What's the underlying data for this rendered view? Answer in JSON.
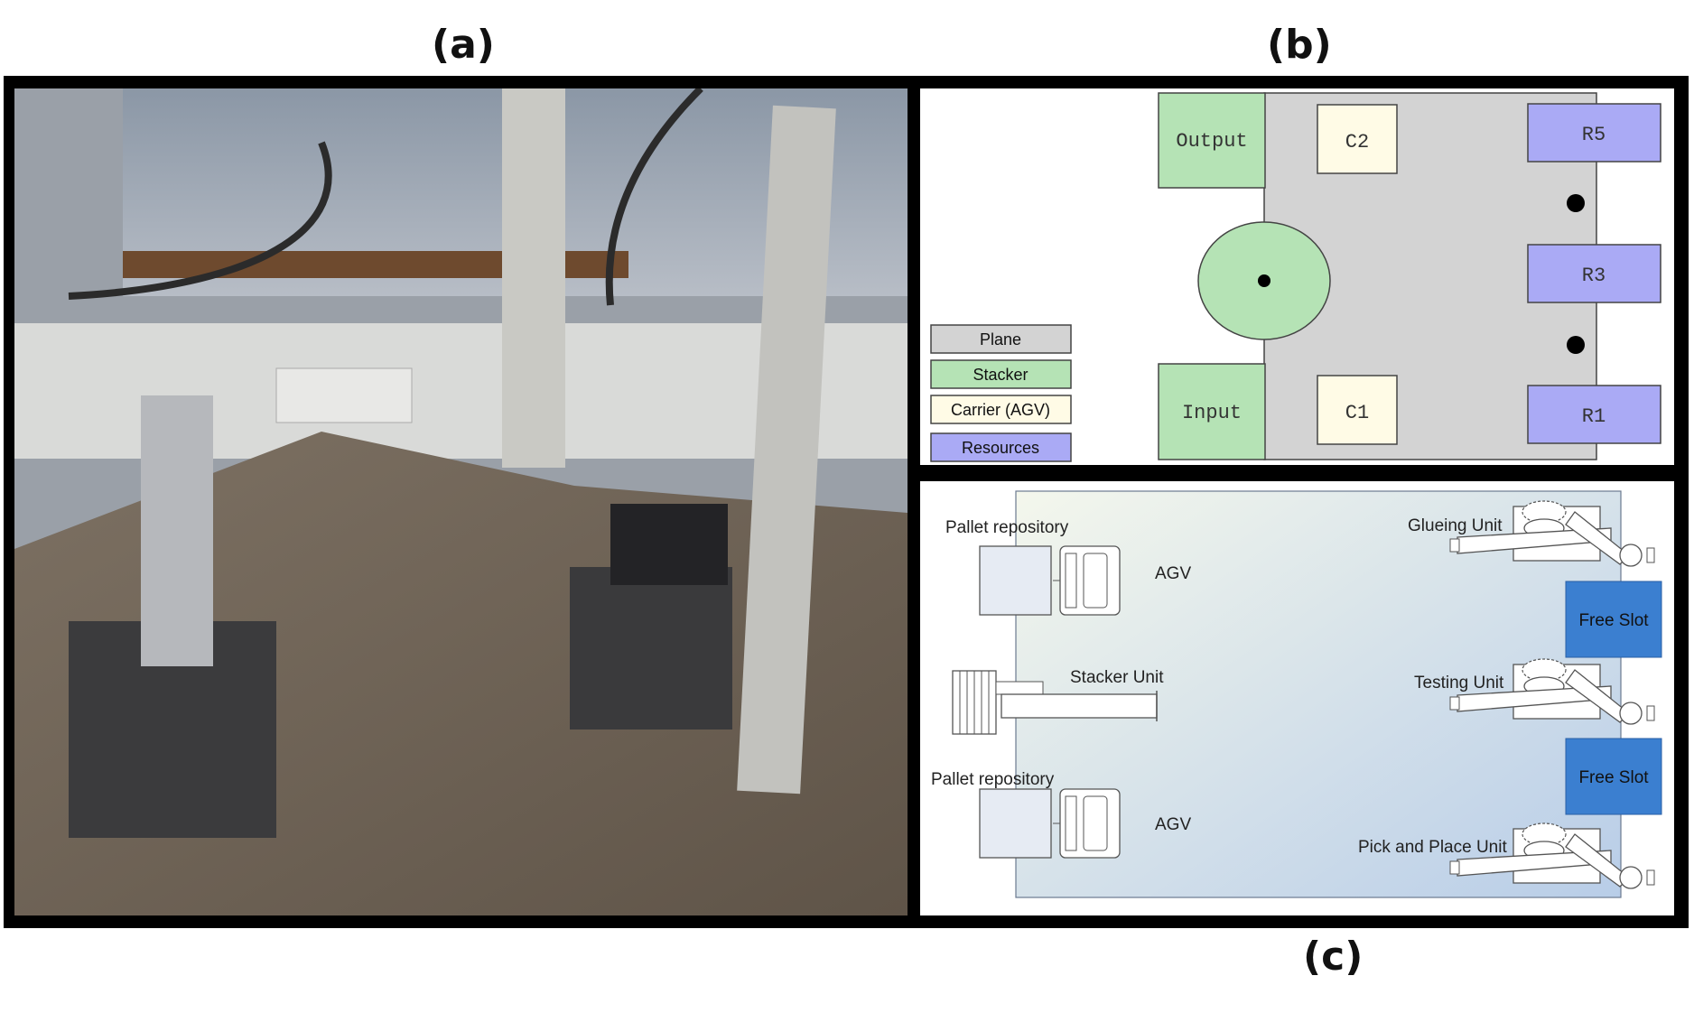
{
  "labels": {
    "a": "(a)",
    "b": "(b)",
    "c": "(c)"
  },
  "panel_b": {
    "legend": [
      {
        "label": "Plane",
        "color": "#d3d3d3"
      },
      {
        "label": "Stacker",
        "color": "#b5e3b5"
      },
      {
        "label": "Carrier (AGV)",
        "color": "#fffbe6"
      },
      {
        "label": "Resources",
        "color": "#aaaaf5"
      }
    ],
    "output": "Output",
    "input": "Input",
    "carriers": [
      "C2",
      "C1"
    ],
    "resources": [
      "R5",
      "R3",
      "R1"
    ]
  },
  "panel_c": {
    "pallet_repository_top": "Pallet repository",
    "pallet_repository_bottom": "Pallet repository",
    "agv_top": "AGV",
    "agv_bottom": "AGV",
    "stacker_unit": "Stacker Unit",
    "glueing_unit": "Glueing Unit",
    "testing_unit": "Testing Unit",
    "pick_place_unit": "Pick and Place Unit",
    "free_slot_top": "Free Slot",
    "free_slot_bottom": "Free Slot",
    "free_slot_color": "#3b7fd0"
  }
}
